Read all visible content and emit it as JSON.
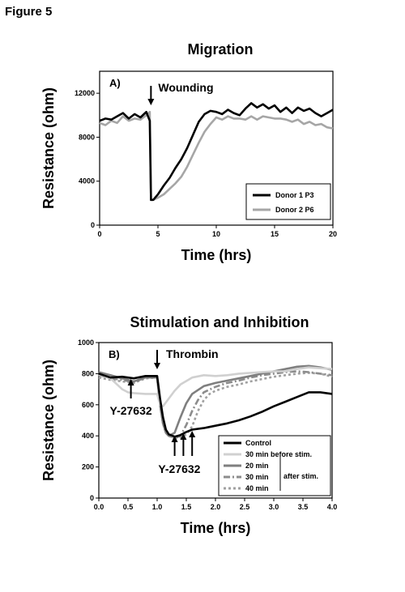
{
  "figure_label": "Figure 5",
  "chart_data": [
    {
      "type": "line",
      "title": "Migration",
      "panel_label": "A)",
      "xlabel": "Time (hrs)",
      "ylabel": "Resistance (ohm)",
      "xlim": [
        0,
        20
      ],
      "ylim": [
        0,
        14000
      ],
      "xticks": [
        0,
        5,
        10,
        15,
        20
      ],
      "yticks": [
        0,
        4000,
        8000,
        12000
      ],
      "grid": false,
      "legend_position": "bottom-right",
      "annotation": {
        "text": "Wounding",
        "x": 4.4
      },
      "series": [
        {
          "name": "Donor 1 P3",
          "color": "#000000",
          "x": [
            0,
            0.5,
            1,
            1.5,
            2,
            2.5,
            3,
            3.5,
            4,
            4.3,
            4.4,
            4.6,
            5,
            5.5,
            6,
            6.5,
            7,
            7.5,
            8,
            8.5,
            9,
            9.5,
            10,
            10.5,
            11,
            11.5,
            12,
            12.5,
            13,
            13.5,
            14,
            14.5,
            15,
            15.5,
            16,
            16.5,
            17,
            17.5,
            18,
            18.5,
            19,
            19.5,
            20
          ],
          "y": [
            9500,
            9700,
            9600,
            9900,
            10200,
            9700,
            10100,
            9800,
            10300,
            9500,
            2300,
            2300,
            2800,
            3600,
            4300,
            5200,
            6000,
            7000,
            8200,
            9400,
            10100,
            10400,
            10300,
            10100,
            10500,
            10200,
            10000,
            10600,
            11100,
            10700,
            11000,
            10600,
            10900,
            10300,
            10700,
            10200,
            10700,
            10400,
            10600,
            10200,
            9900,
            10200,
            10500
          ]
        },
        {
          "name": "Donor 2 P6",
          "color": "#a6a6a6",
          "x": [
            0,
            0.5,
            1,
            1.5,
            2,
            2.5,
            3,
            3.5,
            4,
            4.3,
            4.4,
            4.6,
            5,
            5.5,
            6,
            6.5,
            7,
            7.5,
            8,
            8.5,
            9,
            9.5,
            10,
            10.5,
            11,
            11.5,
            12,
            12.5,
            13,
            13.5,
            14,
            14.5,
            15,
            15.5,
            16,
            16.5,
            17,
            17.5,
            18,
            18.5,
            19,
            19.5,
            20
          ],
          "y": [
            9300,
            9100,
            9500,
            9300,
            9900,
            9500,
            9700,
            9600,
            10000,
            10300,
            2300,
            2300,
            2500,
            2800,
            3300,
            3800,
            4400,
            5300,
            6400,
            7500,
            8500,
            9200,
            9800,
            9600,
            9900,
            9700,
            9700,
            9600,
            9900,
            9600,
            9900,
            9800,
            9700,
            9700,
            9600,
            9400,
            9600,
            9200,
            9400,
            9100,
            9200,
            8900,
            8800
          ]
        }
      ]
    },
    {
      "type": "line",
      "title": "Stimulation and Inhibition",
      "panel_label": "B)",
      "xlabel": "Time (hrs)",
      "ylabel": "Resistance (ohm)",
      "xlim": [
        0.0,
        4.0
      ],
      "ylim": [
        0,
        1000
      ],
      "xticks": [
        "0.0",
        "0.5",
        "1.0",
        "1.5",
        "2.0",
        "2.5",
        "3.0",
        "3.5",
        "4.0"
      ],
      "yticks": [
        0,
        200,
        400,
        600,
        800,
        1000
      ],
      "grid": false,
      "legend_position": "bottom-right",
      "annotations": [
        {
          "text": "Thrombin",
          "x": 1.0
        },
        {
          "text": "Y-27632",
          "x": 0.55,
          "arrows_x": [
            0.55
          ]
        },
        {
          "text": "Y-27632",
          "x": 1.45,
          "arrows_x": [
            1.3,
            1.45,
            1.6
          ]
        }
      ],
      "legend_group_label": "after stim.",
      "series": [
        {
          "name": "Control",
          "color": "#000000",
          "dash": "",
          "x": [
            0,
            0.2,
            0.4,
            0.6,
            0.8,
            1.0,
            1.05,
            1.1,
            1.15,
            1.2,
            1.3,
            1.4,
            1.5,
            1.6,
            1.8,
            2.0,
            2.2,
            2.4,
            2.6,
            2.8,
            3.0,
            3.2,
            3.4,
            3.6,
            3.8,
            4.0
          ],
          "y": [
            800,
            775,
            780,
            770,
            785,
            785,
            640,
            520,
            440,
            410,
            395,
            405,
            425,
            440,
            450,
            465,
            480,
            500,
            525,
            555,
            590,
            620,
            650,
            680,
            680,
            670
          ]
        },
        {
          "name": "30 min before stim.",
          "color": "#d0d0d0",
          "dash": "",
          "x": [
            0,
            0.2,
            0.4,
            0.5,
            0.6,
            0.8,
            1.0,
            1.05,
            1.1,
            1.2,
            1.3,
            1.4,
            1.6,
            1.8,
            2.0,
            2.2,
            2.4,
            2.6,
            2.8,
            3.0,
            3.2,
            3.4,
            3.6,
            3.8,
            4.0
          ],
          "y": [
            795,
            770,
            700,
            680,
            675,
            670,
            670,
            600,
            590,
            640,
            690,
            730,
            775,
            790,
            785,
            790,
            800,
            805,
            810,
            815,
            815,
            830,
            840,
            835,
            830
          ]
        },
        {
          "name": "20 min",
          "color": "#7f7f7f",
          "dash": "",
          "x": [
            0,
            0.2,
            0.4,
            0.6,
            0.8,
            1.0,
            1.05,
            1.1,
            1.15,
            1.2,
            1.3,
            1.4,
            1.5,
            1.6,
            1.8,
            2.0,
            2.2,
            2.4,
            2.6,
            2.8,
            3.0,
            3.2,
            3.4,
            3.6,
            3.8,
            4.0
          ],
          "y": [
            810,
            790,
            770,
            750,
            775,
            775,
            600,
            480,
            420,
            400,
            420,
            520,
            610,
            670,
            720,
            740,
            755,
            770,
            785,
            800,
            815,
            830,
            845,
            850,
            840,
            825
          ]
        },
        {
          "name": "30 min",
          "color": "#8c8c8c",
          "dash": "8,3,2,3",
          "x": [
            0,
            0.2,
            0.4,
            0.6,
            0.8,
            1.0,
            1.05,
            1.1,
            1.15,
            1.2,
            1.3,
            1.4,
            1.5,
            1.6,
            1.7,
            1.8,
            2.0,
            2.2,
            2.4,
            2.6,
            2.8,
            3.0,
            3.2,
            3.4,
            3.6,
            3.8,
            4.0
          ],
          "y": [
            790,
            770,
            760,
            745,
            775,
            780,
            600,
            480,
            420,
            400,
            385,
            400,
            470,
            560,
            630,
            680,
            715,
            740,
            755,
            775,
            790,
            800,
            810,
            815,
            810,
            800,
            790
          ]
        },
        {
          "name": "40 min",
          "color": "#a0a0a0",
          "dash": "3,3",
          "x": [
            0,
            0.2,
            0.4,
            0.6,
            0.8,
            1.0,
            1.05,
            1.1,
            1.15,
            1.2,
            1.3,
            1.4,
            1.5,
            1.6,
            1.7,
            1.8,
            1.9,
            2.0,
            2.2,
            2.4,
            2.6,
            2.8,
            3.0,
            3.2,
            3.4,
            3.6,
            3.8,
            4.0
          ],
          "y": [
            775,
            760,
            750,
            740,
            770,
            775,
            600,
            480,
            420,
            400,
            385,
            390,
            410,
            460,
            560,
            630,
            670,
            690,
            715,
            730,
            750,
            765,
            780,
            790,
            800,
            805,
            800,
            780
          ]
        }
      ]
    }
  ]
}
